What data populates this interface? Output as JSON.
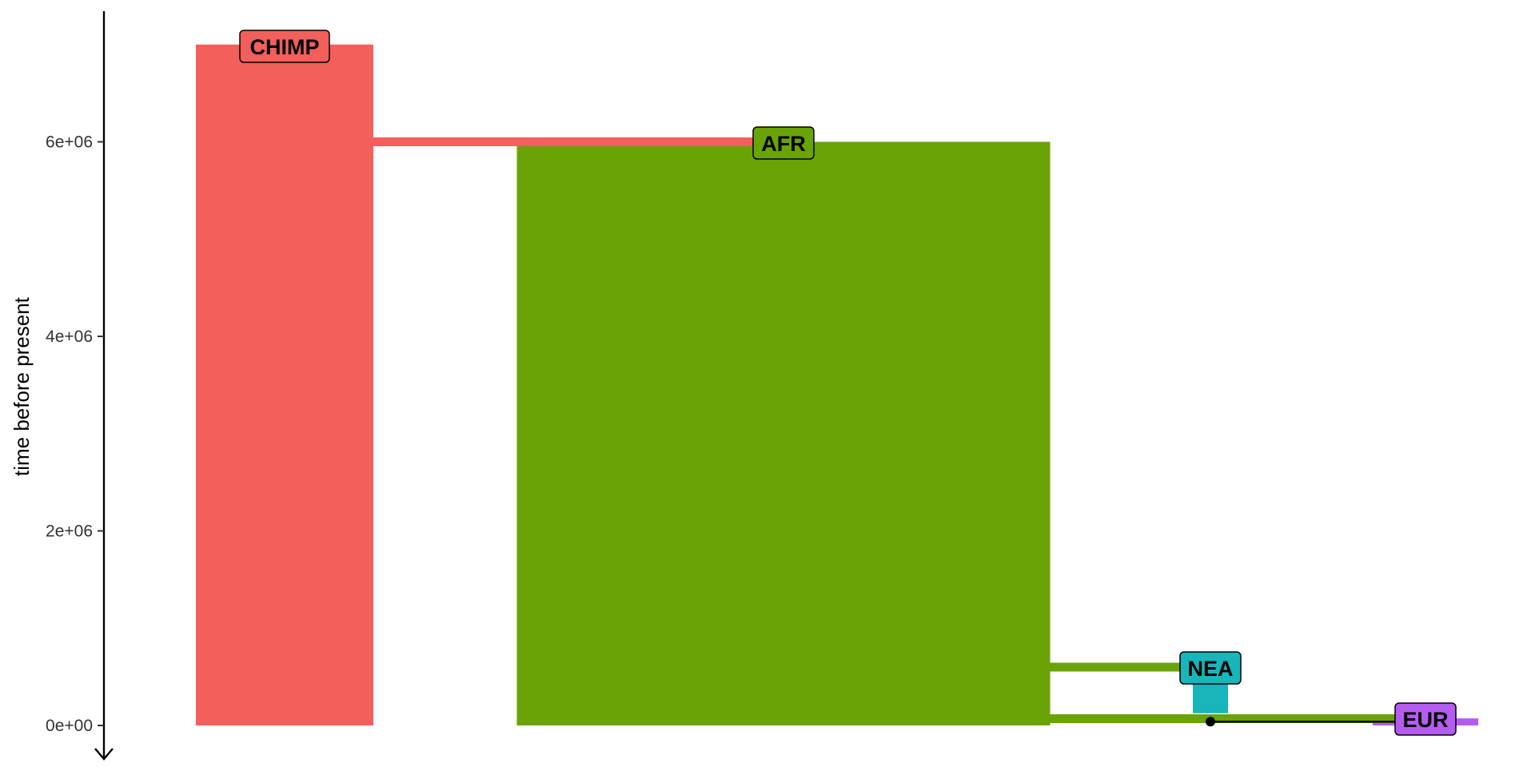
{
  "chart_data": {
    "type": "bar",
    "title": "",
    "xlabel": "",
    "ylabel": "time before present",
    "y_ticks": [
      {
        "value": 0,
        "label": "0e+00"
      },
      {
        "value": 2000000,
        "label": "2e+06"
      },
      {
        "value": 4000000,
        "label": "4e+06"
      },
      {
        "value": 6000000,
        "label": "6e+06"
      }
    ],
    "ylim": [
      0,
      7300000
    ],
    "y_axis_direction": "arrow pointing toward present",
    "grid": false,
    "legend": "none",
    "populations": [
      {
        "name": "CHIMP",
        "color": "#F35F5B",
        "start_time": 7000000,
        "end_time": 0,
        "relative_size": 1.0
      },
      {
        "name": "AFR",
        "color": "#6AA305",
        "start_time": 6000000,
        "end_time": 0,
        "relative_size": 3.0,
        "parent": "CHIMP"
      },
      {
        "name": "NEA",
        "color": "#18B5BA",
        "start_time": 600000,
        "end_time": 125000,
        "relative_size": 0.2,
        "parent": "AFR"
      },
      {
        "name": "EUR",
        "color": "#B55CF0",
        "start_time": 70000,
        "end_time": 0,
        "relative_size": 0.6,
        "parent": "AFR"
      }
    ],
    "gene_flow": [
      {
        "from": "NEA",
        "to": "EUR",
        "time": 55000
      }
    ]
  }
}
